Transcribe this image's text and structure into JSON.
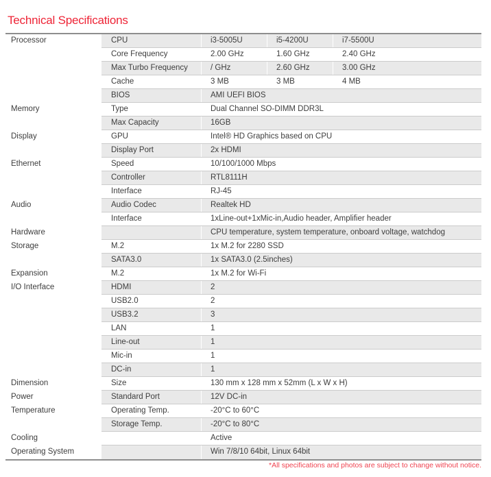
{
  "page": {
    "title": "Technical Specifications",
    "footnote": "*All specifications and photos are subject to change without notice."
  },
  "colors": {
    "title_red": "#ee2436",
    "footnote_red": "#ef4350",
    "row_stripe": "#e9e9e9",
    "row_border": "#cbcbcb",
    "table_border": "#8e8e8e",
    "text": "#3d3d3d"
  },
  "table": {
    "rows": [
      {
        "category": "Processor",
        "label": "CPU",
        "values": [
          "i3-5005U",
          "i5-4200U",
          "i7-5500U"
        ]
      },
      {
        "category": "",
        "label": "Core Frequency",
        "values": [
          "2.00 GHz",
          "1.60 GHz",
          "2.40 GHz"
        ]
      },
      {
        "category": "",
        "label": "Max Turbo Frequency",
        "values": [
          "/ GHz",
          "2.60 GHz",
          "3.00 GHz"
        ]
      },
      {
        "category": "",
        "label": "Cache",
        "values": [
          "3 MB",
          "3 MB",
          "4 MB"
        ]
      },
      {
        "category": "",
        "label": "BIOS",
        "value": "AMI UEFI BIOS"
      },
      {
        "category": "Memory",
        "label": "Type",
        "value": "Dual Channel SO-DIMM DDR3L"
      },
      {
        "category": "",
        "label": "Max Capacity",
        "value": "16GB"
      },
      {
        "category": "Display",
        "label": "GPU",
        "value": "Intel® HD Graphics based on CPU"
      },
      {
        "category": "",
        "label": "Display Port",
        "value": "2x HDMI"
      },
      {
        "category": "Ethernet",
        "label": "Speed",
        "value": "10/100/1000 Mbps"
      },
      {
        "category": "",
        "label": "Controller",
        "value": "RTL8111H"
      },
      {
        "category": "",
        "label": "Interface",
        "value": "RJ-45"
      },
      {
        "category": "Audio",
        "label": "Audio Codec",
        "value": "Realtek HD"
      },
      {
        "category": "",
        "label": "Interface",
        "value": "1xLine-out+1xMic-in,Audio header, Amplifier header"
      },
      {
        "category": "Hardware",
        "label": "",
        "value": "CPU temperature, system temperature, onboard voltage, watchdog"
      },
      {
        "category": "Storage",
        "label": "M.2",
        "value": "1x M.2 for 2280 SSD"
      },
      {
        "category": "",
        "label": "SATA3.0",
        "value": "1x SATA3.0 (2.5inches)"
      },
      {
        "category": "Expansion",
        "label": "M.2",
        "value": "1x M.2 for Wi-Fi"
      },
      {
        "category": "I/O Interface",
        "label": "HDMI",
        "value": "2"
      },
      {
        "category": "",
        "label": "USB2.0",
        "value": "2"
      },
      {
        "category": "",
        "label": "USB3.2",
        "value": "3"
      },
      {
        "category": "",
        "label": "LAN",
        "value": "1"
      },
      {
        "category": "",
        "label": "Line-out",
        "value": "1"
      },
      {
        "category": "",
        "label": "Mic-in",
        "value": "1"
      },
      {
        "category": "",
        "label": "DC-in",
        "value": "1"
      },
      {
        "category": "Dimension",
        "label": "Size",
        "value": "130 mm x 128 mm x 52mm (L x W x H)"
      },
      {
        "category": "Power",
        "label": "Standard Port",
        "value": "12V DC-in"
      },
      {
        "category": "Temperature",
        "label": "Operating Temp.",
        "value": "-20°C to 60°C"
      },
      {
        "category": "",
        "label": "Storage Temp.",
        "value": "-20°C to 80°C"
      },
      {
        "category": "Cooling",
        "label": "",
        "value": "Active"
      },
      {
        "category": "Operating System",
        "label": "",
        "value": "Win 7/8/10 64bit, Linux 64bit"
      }
    ]
  }
}
